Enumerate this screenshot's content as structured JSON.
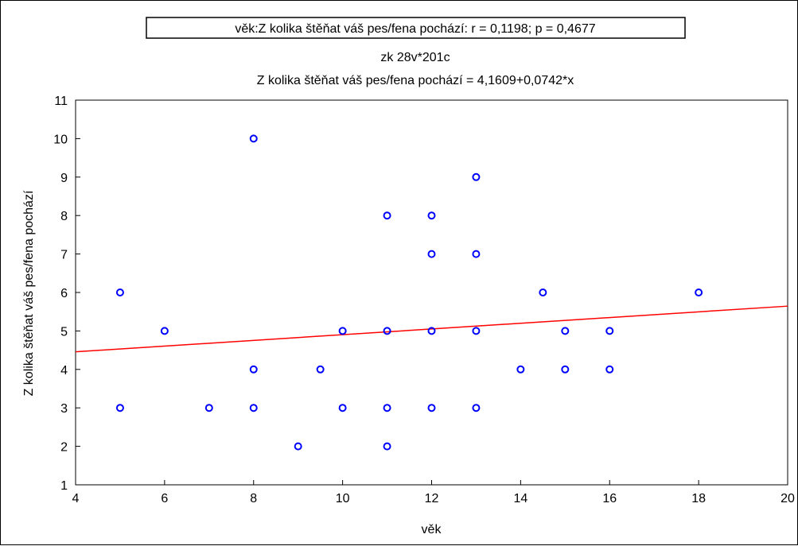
{
  "chart_data": {
    "type": "scatter",
    "stat_box_text": "věk:Z kolika štěňat váš pes/fena pochází:   r = 0,1198; p = 0,4677",
    "subtitle": "zk 28v*201c",
    "regression_text": "Z kolika štěňat váš pes/fena pochází = 4,1609+0,0742*x",
    "xlabel": "věk",
    "ylabel": "Z kolika štěňat váš pes/fena pochází",
    "xlim": [
      4,
      20
    ],
    "ylim": [
      1,
      11
    ],
    "xticks": [
      "4",
      "6",
      "8",
      "10",
      "12",
      "14",
      "16",
      "18",
      "20"
    ],
    "yticks": [
      "1",
      "2",
      "3",
      "4",
      "5",
      "6",
      "7",
      "8",
      "9",
      "10",
      "11"
    ],
    "regression": {
      "intercept": 4.1609,
      "slope": 0.0742
    },
    "grid": false,
    "colors": {
      "points": "#0000ff",
      "line": "#ff0000",
      "axes": "#000000"
    },
    "points": [
      {
        "x": 5,
        "y": 6
      },
      {
        "x": 5,
        "y": 3
      },
      {
        "x": 6,
        "y": 5
      },
      {
        "x": 7,
        "y": 3
      },
      {
        "x": 8,
        "y": 10
      },
      {
        "x": 8,
        "y": 4
      },
      {
        "x": 8,
        "y": 3
      },
      {
        "x": 9,
        "y": 2
      },
      {
        "x": 9.5,
        "y": 4
      },
      {
        "x": 10,
        "y": 5
      },
      {
        "x": 10,
        "y": 3
      },
      {
        "x": 11,
        "y": 8
      },
      {
        "x": 11,
        "y": 5
      },
      {
        "x": 11,
        "y": 3
      },
      {
        "x": 11,
        "y": 2
      },
      {
        "x": 12,
        "y": 8
      },
      {
        "x": 12,
        "y": 7
      },
      {
        "x": 12,
        "y": 5
      },
      {
        "x": 12,
        "y": 3
      },
      {
        "x": 13,
        "y": 9
      },
      {
        "x": 13,
        "y": 7
      },
      {
        "x": 13,
        "y": 5
      },
      {
        "x": 13,
        "y": 3
      },
      {
        "x": 14,
        "y": 4
      },
      {
        "x": 14.5,
        "y": 6
      },
      {
        "x": 15,
        "y": 5
      },
      {
        "x": 15,
        "y": 4
      },
      {
        "x": 16,
        "y": 5
      },
      {
        "x": 16,
        "y": 4
      },
      {
        "x": 18,
        "y": 6
      }
    ]
  }
}
